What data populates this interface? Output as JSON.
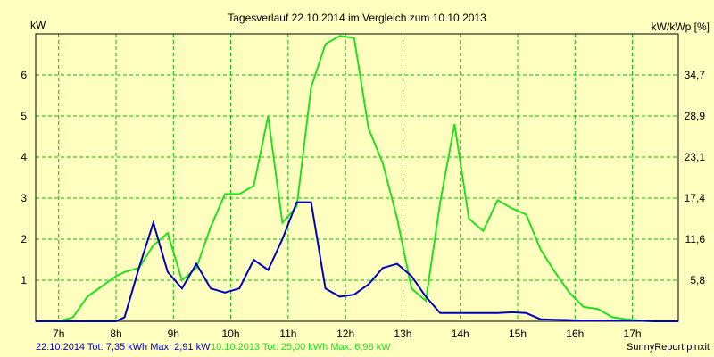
{
  "chart_data": {
    "type": "line",
    "title": "Tagesverlauf 22.10.2014 im Vergleich zum 10.10.2013",
    "ylabel_left": "kW",
    "ylabel_right": "kW/kWp [%]",
    "ylim": [
      0,
      7
    ],
    "left_ticks": [
      "1",
      "2",
      "3",
      "4",
      "5",
      "6"
    ],
    "left_tick_values": [
      1,
      2,
      3,
      4,
      5,
      6
    ],
    "right_ticks": [
      "5,8",
      "11,6",
      "17,4",
      "23,1",
      "28,9",
      "34,7"
    ],
    "x_ticks": [
      "7h",
      "8h",
      "9h",
      "10h",
      "11h",
      "12h",
      "13h",
      "14h",
      "15h",
      "16h",
      "17h"
    ],
    "x_tick_values": [
      7,
      8,
      9,
      10,
      11,
      12,
      13,
      14,
      15,
      16,
      17
    ],
    "xlim": [
      6.6,
      17.8
    ],
    "grid": true,
    "colors": {
      "background": "#ffffc0",
      "grid": "#00c000",
      "series_2014": "#0000c0",
      "series_2013": "#20e020"
    },
    "series": [
      {
        "name": "22.10.2014",
        "x": [
          6.6,
          7.0,
          7.25,
          7.5,
          7.75,
          8.0,
          8.15,
          8.4,
          8.65,
          8.9,
          9.15,
          9.4,
          9.65,
          9.9,
          10.15,
          10.4,
          10.65,
          10.9,
          11.15,
          11.4,
          11.65,
          11.9,
          12.15,
          12.4,
          12.65,
          12.9,
          13.15,
          13.4,
          13.65,
          13.9,
          14.15,
          14.4,
          14.65,
          14.9,
          15.15,
          15.4,
          15.65,
          15.9,
          16.15,
          16.4,
          16.65,
          16.9,
          17.15,
          17.4,
          17.8
        ],
        "y": [
          0,
          0,
          0,
          0,
          0,
          0,
          0.1,
          1.3,
          2.4,
          1.2,
          0.8,
          1.4,
          0.8,
          0.7,
          0.8,
          1.5,
          1.25,
          2.0,
          2.9,
          2.9,
          0.8,
          0.6,
          0.65,
          0.9,
          1.3,
          1.4,
          1.1,
          0.6,
          0.2,
          0.2,
          0.2,
          0.2,
          0.2,
          0.22,
          0.2,
          0.05,
          0.04,
          0.03,
          0.02,
          0.02,
          0.02,
          0.01,
          0.01,
          0,
          0
        ]
      },
      {
        "name": "10.10.2013",
        "x": [
          6.6,
          7.0,
          7.25,
          7.5,
          7.75,
          8.0,
          8.15,
          8.4,
          8.65,
          8.9,
          9.15,
          9.4,
          9.65,
          9.9,
          10.15,
          10.4,
          10.65,
          10.9,
          11.15,
          11.4,
          11.65,
          11.9,
          12.15,
          12.4,
          12.65,
          12.9,
          13.15,
          13.4,
          13.65,
          13.9,
          14.15,
          14.4,
          14.65,
          14.9,
          15.15,
          15.4,
          15.65,
          15.9,
          16.15,
          16.4,
          16.65,
          16.9,
          17.15,
          17.4,
          17.8
        ],
        "y": [
          0,
          0,
          0.1,
          0.6,
          0.85,
          1.1,
          1.2,
          1.3,
          1.85,
          2.15,
          1.0,
          1.3,
          2.3,
          3.1,
          3.1,
          3.3,
          5.0,
          2.4,
          2.8,
          5.7,
          6.75,
          6.95,
          6.9,
          4.7,
          3.85,
          2.5,
          0.8,
          0.5,
          2.9,
          4.8,
          2.5,
          2.2,
          2.95,
          2.75,
          2.6,
          1.75,
          1.2,
          0.7,
          0.35,
          0.3,
          0.1,
          0.05,
          0.02,
          0,
          0
        ]
      }
    ]
  },
  "footer": {
    "legend_2014": "22.10.2014 Tot: 7,35 kWh Max: 2,91 kW",
    "legend_2013": "10.10.2013 Tot: 25,00 kWh Max: 6,98 kW",
    "credit": "SunnyReport pinxit"
  }
}
